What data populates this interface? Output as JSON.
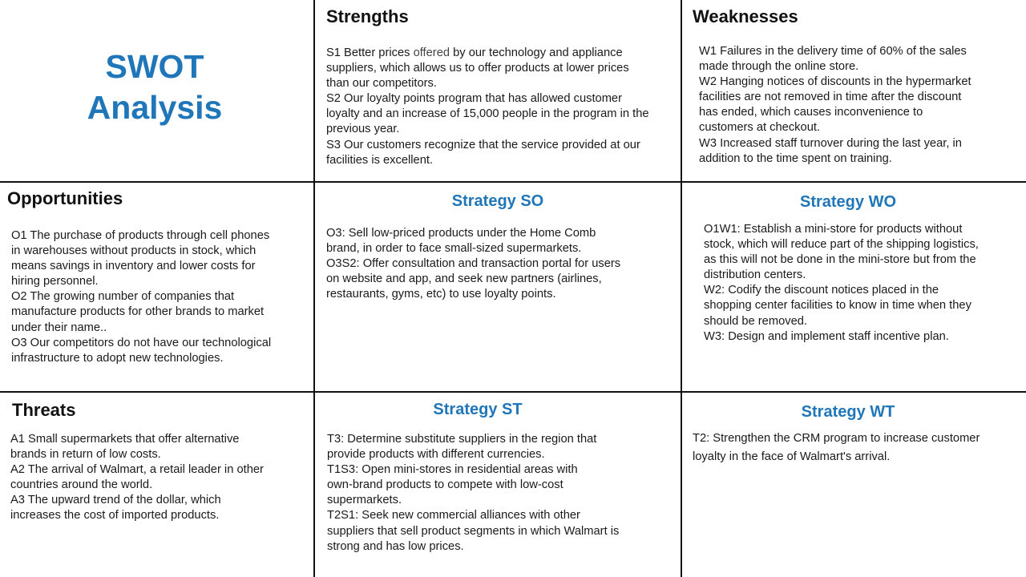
{
  "title": {
    "line1": "SWOT",
    "line2": "Analysis"
  },
  "strengths": {
    "heading": "Strengths",
    "lines": [
      "S1 Better prices ",
      "suppliers, which allows us to offer products at lower prices",
      "than our competitors.",
      "S2 Our loyalty points program that has allowed customer",
      "loyalty and an increase of 15,000 people in the program in the",
      "previous year.",
      "S3 Our customers recognize that the service provided at our",
      "facilities is excellent."
    ],
    "line1_mid": "offered",
    "line1_end": " by our technology and appliance"
  },
  "weaknesses": {
    "heading": "Weaknesses",
    "lines": [
      "W1 Failures in the delivery time of 60% of the sales",
      "made through the online store.",
      "W2 Hanging notices of discounts in the hypermarket",
      "facilities are not removed in time after the discount",
      "has ended, which causes inconvenience to",
      "customers at checkout.",
      "W3 Increased staff turnover during the last year, in",
      "addition to the time spent on training."
    ]
  },
  "opportunities": {
    "heading": "Opportunities",
    "lines": [
      "O1 The purchase of products through cell phones",
      "in warehouses without products in stock, which",
      "means savings in inventory and lower costs for",
      "hiring personnel.",
      "O2 The growing number of companies that",
      "manufacture products for other brands to market",
      "under their name..",
      "O3 Our competitors do not have our technological",
      "infrastructure to adopt new technologies."
    ]
  },
  "strategy_so": {
    "heading": "Strategy SO",
    "lines": [
      "O3: Sell low-priced products under the Home Comb",
      "brand, in order to face small-sized supermarkets.",
      "O3S2: Offer consultation and transaction portal for users",
      "on website and app, and seek new partners (airlines,",
      "restaurants, gyms, etc) to use loyalty points."
    ]
  },
  "strategy_wo": {
    "heading": "Strategy WO",
    "lines": [
      "O1W1: Establish a mini-store for products without",
      "stock, which will reduce part of the shipping logistics,",
      "as this will not be done in the mini-store but from the",
      "distribution centers.",
      "W2: Codify the discount notices placed in the",
      "shopping center facilities to know in time when they",
      "should be removed.",
      "W3: Design and implement staff incentive plan."
    ]
  },
  "threats": {
    "heading": "Threats",
    "lines": [
      "A1 Small supermarkets that offer alternative",
      "brands in return of low costs.",
      "A2 The arrival of Walmart, a retail leader in other",
      "countries around the world.",
      "A3 The upward trend of the dollar, which",
      "increases the cost of imported products."
    ]
  },
  "strategy_st": {
    "heading": "Strategy ST",
    "lines": [
      "T3: Determine substitute suppliers in the region that",
      "provide products with different currencies.",
      "T1S3: Open mini-stores in residential areas with",
      "own-brand products to compete with low-cost",
      "supermarkets.",
      "T2S1: Seek new commercial alliances with other",
      "suppliers that sell product segments in which Walmart is",
      "strong and has low prices."
    ]
  },
  "strategy_wt": {
    "heading": "Strategy WT",
    "lines": [
      "T2: Strengthen the CRM program to increase customer",
      "loyalty in the face of Walmart's arrival."
    ]
  },
  "colors": {
    "accent": "#1f76b8",
    "text": "#111111",
    "grid": "#111111"
  }
}
